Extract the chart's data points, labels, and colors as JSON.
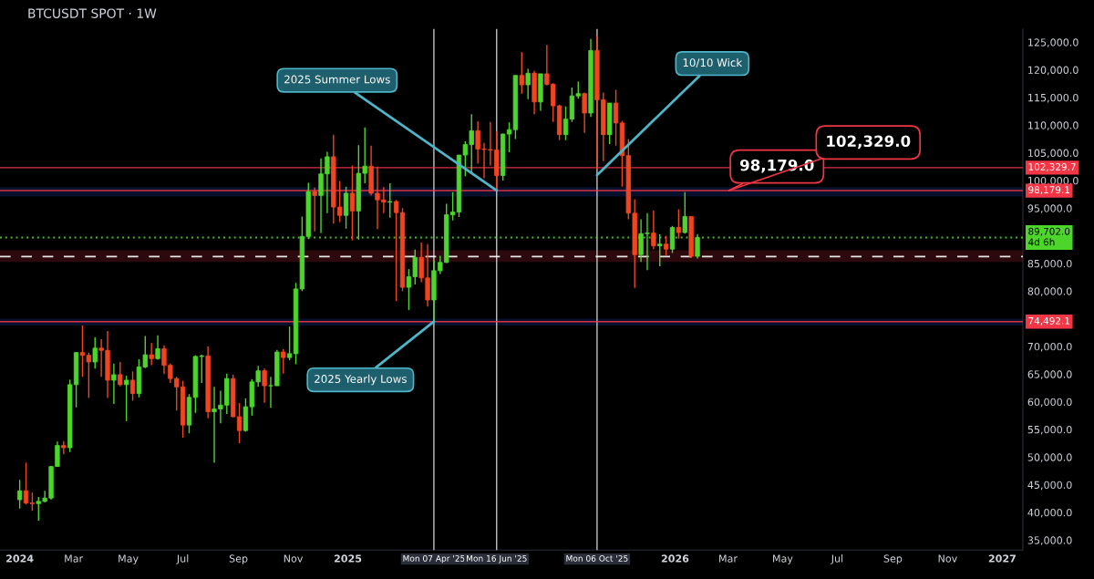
{
  "chart_data": {
    "type": "candlestick",
    "title": "BTCUSDT SPOT · 1W",
    "x": [
      "2024-01-01",
      "2024-01-08",
      "2024-01-15",
      "2024-01-22",
      "2024-01-29",
      "2024-02-05",
      "2024-02-12",
      "2024-02-19",
      "2024-02-26",
      "2024-03-04",
      "2024-03-11",
      "2024-03-18",
      "2024-03-25",
      "2024-04-01",
      "2024-04-08",
      "2024-04-15",
      "2024-04-22",
      "2024-04-29",
      "2024-05-06",
      "2024-05-13",
      "2024-05-20",
      "2024-05-27",
      "2024-06-03",
      "2024-06-10",
      "2024-06-17",
      "2024-06-24",
      "2024-07-01",
      "2024-07-08",
      "2024-07-15",
      "2024-07-22",
      "2024-07-29",
      "2024-08-05",
      "2024-08-12",
      "2024-08-19",
      "2024-08-26",
      "2024-09-02",
      "2024-09-09",
      "2024-09-16",
      "2024-09-23",
      "2024-09-30",
      "2024-10-07",
      "2024-10-14",
      "2024-10-21",
      "2024-10-28",
      "2024-11-04",
      "2024-11-11",
      "2024-11-18",
      "2024-11-25",
      "2024-12-02",
      "2024-12-09",
      "2024-12-16",
      "2024-12-23",
      "2024-12-30",
      "2025-01-06",
      "2025-01-13",
      "2025-01-20",
      "2025-01-27",
      "2025-02-03",
      "2025-02-10",
      "2025-02-17",
      "2025-02-24",
      "2025-03-03",
      "2025-03-10",
      "2025-03-17",
      "2025-03-24",
      "2025-03-31",
      "2025-04-07",
      "2025-04-14",
      "2025-04-21",
      "2025-04-28",
      "2025-05-05",
      "2025-05-12",
      "2025-05-19",
      "2025-05-26",
      "2025-06-02",
      "2025-06-09",
      "2025-06-16",
      "2025-06-23",
      "2025-06-30",
      "2025-07-07",
      "2025-07-14",
      "2025-07-21",
      "2025-07-28",
      "2025-08-04",
      "2025-08-11",
      "2025-08-18",
      "2025-08-25",
      "2025-09-01",
      "2025-09-08",
      "2025-09-15",
      "2025-09-22",
      "2025-09-29",
      "2025-10-06",
      "2025-10-13",
      "2025-10-20",
      "2025-10-27",
      "2025-11-03",
      "2025-11-10",
      "2025-11-17",
      "2025-11-24",
      "2025-12-01",
      "2025-12-08",
      "2025-12-15",
      "2025-12-22",
      "2025-12-29",
      "2026-01-05",
      "2026-01-12",
      "2026-01-19",
      "2026-01-26"
    ],
    "ohlc": [
      [
        42300,
        45900,
        40700,
        43900
      ],
      [
        43900,
        49000,
        41500,
        41700
      ],
      [
        41700,
        43600,
        40300,
        41600
      ],
      [
        41600,
        42800,
        38500,
        42000
      ],
      [
        42000,
        43900,
        41800,
        42600
      ],
      [
        42600,
        48400,
        42300,
        48300
      ],
      [
        48300,
        52800,
        48300,
        52100
      ],
      [
        52100,
        52900,
        50500,
        51700
      ],
      [
        51700,
        64000,
        50900,
        63100
      ],
      [
        63100,
        69000,
        59000,
        68900
      ],
      [
        68900,
        73800,
        64500,
        68400
      ],
      [
        68400,
        68900,
        60700,
        67200
      ],
      [
        67200,
        71700,
        66000,
        69700
      ],
      [
        69700,
        71300,
        64500,
        69300
      ],
      [
        69300,
        72800,
        60700,
        63900
      ],
      [
        63900,
        66900,
        59600,
        64900
      ],
      [
        64900,
        67200,
        62800,
        63100
      ],
      [
        63100,
        64700,
        56500,
        63900
      ],
      [
        63900,
        65500,
        60200,
        61500
      ],
      [
        61500,
        67700,
        60800,
        66300
      ],
      [
        66300,
        71900,
        66100,
        68500
      ],
      [
        68500,
        70600,
        66600,
        67800
      ],
      [
        67800,
        72000,
        67600,
        69600
      ],
      [
        69600,
        70200,
        65000,
        66600
      ],
      [
        66600,
        66900,
        63400,
        64200
      ],
      [
        64200,
        64500,
        58400,
        62700
      ],
      [
        62700,
        63800,
        53500,
        55800
      ],
      [
        55800,
        61400,
        54300,
        60800
      ],
      [
        60800,
        68400,
        58000,
        68200
      ],
      [
        68200,
        68500,
        63400,
        68300
      ],
      [
        68300,
        70000,
        57000,
        58200
      ],
      [
        58200,
        62700,
        49000,
        58700
      ],
      [
        58700,
        62000,
        56100,
        59400
      ],
      [
        59400,
        65100,
        57800,
        64200
      ],
      [
        64200,
        64900,
        57200,
        57300
      ],
      [
        57300,
        59800,
        52500,
        54800
      ],
      [
        54800,
        60600,
        54600,
        59100
      ],
      [
        59100,
        64100,
        57500,
        63600
      ],
      [
        63600,
        66500,
        62700,
        65600
      ],
      [
        65600,
        66000,
        59800,
        62900
      ],
      [
        62900,
        64500,
        58900,
        62900
      ],
      [
        62900,
        69400,
        62900,
        69000
      ],
      [
        69000,
        69500,
        65100,
        68000
      ],
      [
        68000,
        73600,
        67500,
        68700
      ],
      [
        68700,
        81500,
        66800,
        80400
      ],
      [
        80400,
        93500,
        80000,
        89900
      ],
      [
        89900,
        99600,
        89400,
        98000
      ],
      [
        98000,
        98700,
        90800,
        97300
      ],
      [
        97300,
        104000,
        90500,
        101200
      ],
      [
        101200,
        105200,
        94100,
        104300
      ],
      [
        104300,
        108300,
        92200,
        95200
      ],
      [
        95200,
        99900,
        92500,
        93700
      ],
      [
        93700,
        98900,
        91300,
        97700
      ],
      [
        97700,
        102700,
        89200,
        94500
      ],
      [
        94500,
        106400,
        89300,
        101300
      ],
      [
        101300,
        109600,
        99500,
        102600
      ],
      [
        102600,
        106300,
        97300,
        97700
      ],
      [
        97700,
        102500,
        91200,
        96500
      ],
      [
        96500,
        98800,
        94100,
        96100
      ],
      [
        96100,
        99500,
        93300,
        96200
      ],
      [
        96200,
        96500,
        78200,
        94200
      ],
      [
        94200,
        95000,
        80000,
        80700
      ],
      [
        80700,
        84000,
        76600,
        82600
      ],
      [
        82600,
        87500,
        81200,
        86100
      ],
      [
        86100,
        88800,
        81600,
        82400
      ],
      [
        82400,
        88500,
        77200,
        78400
      ],
      [
        78400,
        85500,
        74500,
        83700
      ],
      [
        83700,
        86400,
        83100,
        85200
      ],
      [
        85200,
        95800,
        85100,
        93800
      ],
      [
        93800,
        97900,
        92800,
        94300
      ],
      [
        94300,
        104600,
        93400,
        104600
      ],
      [
        104600,
        107100,
        100800,
        106500
      ],
      [
        106500,
        112000,
        101500,
        109000
      ],
      [
        109000,
        110700,
        103100,
        105700
      ],
      [
        105700,
        106800,
        100400,
        105600
      ],
      [
        105600,
        110600,
        102700,
        105500
      ],
      [
        105500,
        108900,
        98200,
        100900
      ],
      [
        100900,
        108500,
        100000,
        108400
      ],
      [
        108400,
        110500,
        105100,
        109200
      ],
      [
        109200,
        119000,
        107500,
        119000
      ],
      [
        119000,
        123200,
        115700,
        117300
      ],
      [
        117300,
        120200,
        114700,
        119400
      ],
      [
        119400,
        119800,
        112000,
        114200
      ],
      [
        114200,
        119300,
        112600,
        119300
      ],
      [
        119300,
        124500,
        117200,
        117400
      ],
      [
        117400,
        117600,
        110600,
        113500
      ],
      [
        113500,
        113700,
        107300,
        108300
      ],
      [
        108300,
        113400,
        107300,
        111100
      ],
      [
        111100,
        116800,
        110600,
        115300
      ],
      [
        115300,
        117900,
        114800,
        115700
      ],
      [
        115700,
        115900,
        108600,
        112200
      ],
      [
        112200,
        125600,
        111500,
        123500
      ],
      [
        123500,
        126200,
        102000,
        114600
      ],
      [
        114600,
        115900,
        103500,
        108300
      ],
      [
        108300,
        114000,
        106600,
        114000
      ],
      [
        114000,
        116400,
        106300,
        110400
      ],
      [
        110400,
        110800,
        98900,
        104500
      ],
      [
        104500,
        107500,
        93000,
        94100
      ],
      [
        94100,
        96600,
        80600,
        86600
      ],
      [
        86600,
        93000,
        85300,
        90400
      ],
      [
        90400,
        94100,
        83800,
        90500
      ],
      [
        90500,
        94600,
        87600,
        88200
      ],
      [
        88200,
        90300,
        84500,
        88500
      ],
      [
        88500,
        90000,
        86500,
        87600
      ],
      [
        87600,
        91800,
        86900,
        91500
      ],
      [
        91500,
        94800,
        89500,
        90600
      ],
      [
        90600,
        97900,
        90400,
        93500
      ],
      [
        93500,
        93500,
        86000,
        86300
      ],
      [
        86300,
        90300,
        85900,
        89700
      ]
    ],
    "xlim": [
      "2023-12-10",
      "2027-01-24"
    ],
    "xticks": [
      {
        "value": "2024-01-01",
        "label": "2024"
      },
      {
        "value": "2024-03-01",
        "label": "Mar"
      },
      {
        "value": "2024-05-01",
        "label": "May"
      },
      {
        "value": "2024-07-01",
        "label": "Jul"
      },
      {
        "value": "2024-09-01",
        "label": "Sep"
      },
      {
        "value": "2024-11-01",
        "label": "Nov"
      },
      {
        "value": "2025-01-01",
        "label": "2025"
      },
      {
        "value": "2026-01-01",
        "label": "2026"
      },
      {
        "value": "2026-03-01",
        "label": "Mar"
      },
      {
        "value": "2026-05-01",
        "label": "May"
      },
      {
        "value": "2026-07-01",
        "label": "Jul"
      },
      {
        "value": "2026-09-01",
        "label": "Sep"
      },
      {
        "value": "2026-11-01",
        "label": "Nov"
      },
      {
        "value": "2027-01-01",
        "label": "2027"
      }
    ],
    "ylim": [
      33200,
      127400
    ],
    "yticks": [
      {
        "value": 35000,
        "label": "35,000.0"
      },
      {
        "value": 40000,
        "label": "40,000.0"
      },
      {
        "value": 45000,
        "label": "45,000.0"
      },
      {
        "value": 50000,
        "label": "50,000.0"
      },
      {
        "value": 55000,
        "label": "55,000.0"
      },
      {
        "value": 60000,
        "label": "60,000.0"
      },
      {
        "value": 65000,
        "label": "65,000.0"
      },
      {
        "value": 70000,
        "label": "70,000.0"
      },
      {
        "value": 80000,
        "label": "80,000.0"
      },
      {
        "value": 85000,
        "label": "85,000.0"
      },
      {
        "value": 95000,
        "label": "95,000.0"
      },
      {
        "value": 100000,
        "label": "100,000.0"
      },
      {
        "value": 105000,
        "label": "105,000.0"
      },
      {
        "value": 110000,
        "label": "110,000.0"
      },
      {
        "value": 115000,
        "label": "115,000.0"
      },
      {
        "value": 120000,
        "label": "120,000.0"
      },
      {
        "value": 125000,
        "label": "125,000.0"
      }
    ],
    "grid": false,
    "ref_lines": [
      {
        "axis": "x",
        "value": "2025-04-07",
        "label": "Mon 07 Apr '25",
        "color": "#d9d9d9"
      },
      {
        "axis": "x",
        "value": "2025-06-16",
        "label": "Mon 16 Jun '25",
        "color": "#d9d9d9"
      },
      {
        "axis": "x",
        "value": "2025-10-06",
        "label": "Mon 06 Oct '25",
        "color": "#d9d9d9"
      },
      {
        "axis": "y",
        "value": 102329.7,
        "label": "102,329.7",
        "color": "#f23645"
      },
      {
        "axis": "y",
        "value": 98179.1,
        "label": "98,179.1",
        "color": "#f23645"
      },
      {
        "axis": "y",
        "value": 89702.0,
        "label": "89,702.0\n4d 6h",
        "color": "#4cd62b",
        "line_style": "dotted"
      },
      {
        "axis": "y",
        "value": 86250,
        "color": "#ffffff",
        "line_style": "dashed"
      },
      {
        "axis": "y",
        "value": 74492.1,
        "label": "74,492.1",
        "color": "#f23645"
      }
    ],
    "bands": [
      {
        "axis": "y",
        "from": 97300,
        "to": 98600,
        "color": "#2962ff"
      },
      {
        "axis": "y",
        "from": 85500,
        "to": 87200,
        "color": "#f23645"
      },
      {
        "axis": "y",
        "from": 74000,
        "to": 74800,
        "color": "#2962ff"
      }
    ],
    "annotations": [
      {
        "text": "2025 Summer Lows",
        "x": "2025-06-16",
        "y": 98200
      },
      {
        "text": "10/10 Wick",
        "x": "2025-10-06",
        "y": 101000
      },
      {
        "text": "2025 Yearly Lows",
        "x": "2025-04-07",
        "y": 74500
      },
      {
        "text": "98,179.0",
        "x": "2026-03-02",
        "y": 98179
      },
      {
        "text": "102,329.0",
        "x": "2026-03-02",
        "y": 98179
      }
    ]
  }
}
